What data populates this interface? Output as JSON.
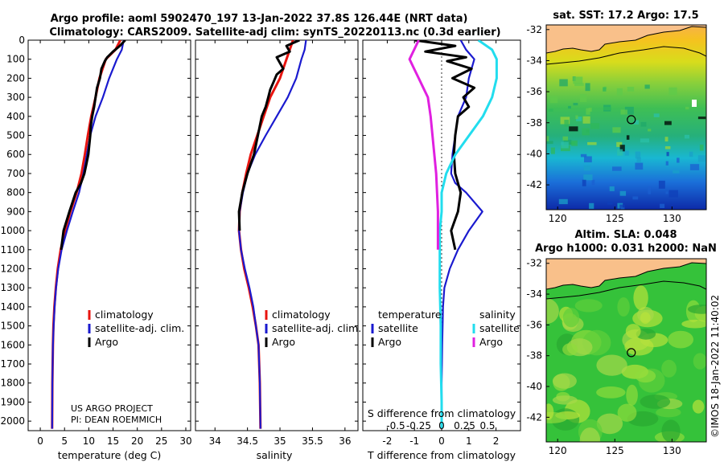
{
  "title_line1": "Argo profile: aoml 5902470_197 13-Jan-2022 37.8S 126.44E (NRT data)",
  "title_line2": "Climatology: CARS2009. Satellite-adj clim: synTS_20220113.nc (0.3d earlier)",
  "credit": [
    "US ARGO PROJECT",
    "PI: DEAN ROEMMICH"
  ],
  "timestamp": "©IMOS 18-Jan-2022 11:40:02",
  "colors": {
    "climatology": "#e8140f",
    "satellite": "#1a1acf",
    "argo": "#000000",
    "sat_salinity": "#22ddee",
    "argo_salinity": "#e020e0"
  },
  "chart_data": [
    {
      "type": "line",
      "title": "",
      "xlabel": "temperature (deg C)",
      "ylabel": "",
      "xlim": [
        -2.5,
        31
      ],
      "ylim": [
        2050,
        0
      ],
      "xticks": [
        0,
        5,
        10,
        15,
        20,
        25,
        30
      ],
      "xtick_labels": [
        "0",
        "5",
        "10",
        "15",
        "20",
        "25",
        "30"
      ],
      "yticks": [
        0,
        100,
        200,
        300,
        400,
        500,
        600,
        700,
        800,
        900,
        1000,
        1100,
        1200,
        1300,
        1400,
        1500,
        1600,
        1700,
        1800,
        1900,
        2000
      ],
      "ytick_labels": [
        "0",
        "100",
        "200",
        "300",
        "400",
        "500",
        "600",
        "700",
        "800",
        "900",
        "1000",
        "1100",
        "1200",
        "1300",
        "1400",
        "1500",
        "1600",
        "1700",
        "1800",
        "1900",
        "2000"
      ],
      "legend": [
        "climatology",
        "satellite-adj. clim.",
        "Argo"
      ],
      "series": [
        {
          "name": "climatology",
          "x": [
            16.5,
            15.5,
            13.5,
            12.2,
            11.4,
            10.5,
            9.8,
            9.2,
            8.5,
            7.5,
            6.2,
            5.1,
            4.2,
            3.6,
            3.2,
            2.9,
            2.7,
            2.6,
            2.5,
            2.45
          ],
          "y": [
            0,
            50,
            100,
            200,
            300,
            400,
            500,
            600,
            700,
            800,
            900,
            1000,
            1100,
            1200,
            1300,
            1400,
            1500,
            1600,
            1800,
            2040
          ]
        },
        {
          "name": "satellite-adj. clim.",
          "x": [
            17.2,
            16.8,
            15.8,
            14.2,
            12.9,
            11.4,
            10.3,
            9.6,
            8.9,
            8.0,
            6.7,
            5.5,
            4.4,
            3.7,
            3.25,
            2.95,
            2.75,
            2.6,
            2.5,
            2.45
          ],
          "y": [
            0,
            50,
            100,
            200,
            300,
            400,
            500,
            600,
            700,
            800,
            900,
            1000,
            1100,
            1200,
            1300,
            1400,
            1500,
            1600,
            1800,
            2040
          ]
        },
        {
          "name": "Argo",
          "x": [
            17.5,
            16.4,
            15.0,
            13.8,
            13.3,
            12.6,
            12.3,
            11.7,
            11.4,
            11.1,
            10.7,
            10.4,
            10.3,
            10.1,
            9.9,
            9.5,
            9.1,
            8.4,
            7.3,
            6.0,
            4.8,
            4.3
          ],
          "y": [
            0,
            30,
            60,
            90,
            110,
            150,
            200,
            250,
            300,
            350,
            400,
            450,
            500,
            550,
            600,
            650,
            700,
            750,
            800,
            900,
            1000,
            1100
          ]
        }
      ]
    },
    {
      "type": "line",
      "title": "",
      "xlabel": "salinity",
      "ylabel": "",
      "xlim": [
        33.7,
        36.2
      ],
      "ylim": [
        2050,
        0
      ],
      "xticks": [
        34,
        34.5,
        35,
        35.5,
        36
      ],
      "xtick_labels": [
        "34",
        "34.5",
        "35",
        "35.5",
        "36"
      ],
      "legend": [
        "climatology",
        "satellite-adj. clim.",
        "Argo"
      ],
      "series": [
        {
          "name": "climatology",
          "x": [
            35.2,
            35.15,
            35.1,
            35.0,
            34.85,
            34.75,
            34.65,
            34.55,
            34.48,
            34.42,
            34.38,
            34.37,
            34.4,
            34.45,
            34.52,
            34.58,
            34.63,
            34.67,
            34.69,
            34.7
          ],
          "y": [
            0,
            50,
            100,
            200,
            300,
            400,
            500,
            600,
            700,
            800,
            900,
            1000,
            1100,
            1200,
            1300,
            1400,
            1500,
            1600,
            1800,
            2040
          ]
        },
        {
          "name": "satellite-adj. clim.",
          "x": [
            35.4,
            35.38,
            35.33,
            35.25,
            35.12,
            34.95,
            34.78,
            34.62,
            34.5,
            34.43,
            34.38,
            34.37,
            34.4,
            34.46,
            34.53,
            34.59,
            34.63,
            34.67,
            34.69,
            34.7
          ],
          "y": [
            0,
            50,
            100,
            200,
            300,
            400,
            500,
            600,
            700,
            800,
            900,
            1000,
            1100,
            1200,
            1300,
            1400,
            1500,
            1600,
            1800,
            2040
          ]
        },
        {
          "name": "Argo",
          "x": [
            35.3,
            35.1,
            35.15,
            34.95,
            35.0,
            35.05,
            34.95,
            34.9,
            34.85,
            34.82,
            34.78,
            34.72,
            34.66,
            34.6,
            34.5,
            34.42,
            34.37,
            34.38
          ],
          "y": [
            0,
            30,
            60,
            90,
            120,
            150,
            180,
            220,
            260,
            300,
            350,
            400,
            500,
            600,
            700,
            800,
            900,
            1000
          ]
        }
      ]
    },
    {
      "type": "line",
      "title": "",
      "xlabel": "T difference from climatology",
      "xlabel_top": "S difference from climatology",
      "xlim": [
        -2.9,
        2.9
      ],
      "ylim": [
        2050,
        0
      ],
      "xticks": [
        -2,
        -1,
        0,
        1,
        2
      ],
      "xtick_labels": [
        "-2",
        "-1",
        "0",
        "1",
        "2"
      ],
      "s_ticks": [
        -0.5,
        -0.25,
        0,
        0.25,
        0.5
      ],
      "s_tick_labels": [
        "-0.5",
        "-0.25",
        "0",
        "0.25",
        "0.5"
      ],
      "legend_headers": [
        "temperature",
        "salinity"
      ],
      "legend_left": [
        "satellite",
        "Argo"
      ],
      "legend_right": [
        "satellite",
        "Argo"
      ],
      "series": [
        {
          "name": "T satellite",
          "x": [
            0.7,
            0.9,
            1.2,
            1.0,
            0.9,
            0.6,
            0.5,
            0.4,
            0.35,
            0.5,
            0.9,
            1.5,
            1.0,
            0.6,
            0.3,
            0.1,
            0.05,
            0.02,
            0,
            0
          ],
          "y": [
            0,
            50,
            100,
            200,
            300,
            400,
            500,
            600,
            700,
            750,
            800,
            900,
            1000,
            1100,
            1200,
            1300,
            1400,
            1600,
            1800,
            2040
          ]
        },
        {
          "name": "T Argo",
          "x": [
            -1.0,
            0.5,
            -0.6,
            0.9,
            0.2,
            1.1,
            0.4,
            1.2,
            0.8,
            1.0,
            0.6,
            0.5,
            0.45,
            0.5,
            0.7,
            0.6,
            0.35,
            0.5
          ],
          "y": [
            0,
            30,
            60,
            90,
            110,
            150,
            200,
            250,
            300,
            350,
            400,
            500,
            600,
            700,
            800,
            900,
            1000,
            1100
          ]
        },
        {
          "name": "S satellite",
          "x": [
            0.4,
            0.55,
            0.6,
            0.6,
            0.55,
            0.45,
            0.3,
            0.15,
            0.05,
            0.0,
            0,
            -0.02,
            -0.02,
            -0.02,
            -0.01,
            -0.01,
            0,
            0
          ],
          "y": [
            0,
            50,
            100,
            200,
            300,
            400,
            500,
            600,
            700,
            800,
            900,
            1000,
            1100,
            1300,
            1500,
            1700,
            1900,
            2040
          ]
        },
        {
          "name": "S Argo",
          "x": [
            -0.25,
            -0.3,
            -0.35,
            -0.3,
            -0.25,
            -0.2,
            -0.15,
            -0.12,
            -0.1,
            -0.08,
            -0.06,
            -0.05,
            -0.04,
            -0.04
          ],
          "y": [
            0,
            50,
            100,
            150,
            200,
            250,
            300,
            400,
            500,
            600,
            700,
            800,
            900,
            1100
          ]
        }
      ]
    },
    {
      "type": "heatmap",
      "title": "sat. SST: 17.2 Argo: 17.5",
      "xlim": [
        119,
        133
      ],
      "ylim": [
        -43.6,
        -31.7
      ],
      "xticks": [
        120,
        125,
        130
      ],
      "xtick_labels": [
        "120",
        "125",
        "130"
      ],
      "yticks": [
        -32,
        -34,
        -36,
        -38,
        -40,
        -42
      ],
      "ytick_labels": [
        "-32",
        "-34",
        "-36",
        "-38",
        "-40",
        "-42"
      ],
      "marker": {
        "lon": 126.44,
        "lat": -37.8
      }
    },
    {
      "type": "heatmap",
      "title_line1": "Altim. SLA: 0.048",
      "title_line2": "Argo h1000: 0.031 h2000: NaN",
      "xlim": [
        119,
        133
      ],
      "ylim": [
        -43.6,
        -31.7
      ],
      "xticks": [
        120,
        125,
        130
      ],
      "xtick_labels": [
        "120",
        "125",
        "130"
      ],
      "yticks": [
        -32,
        -34,
        -36,
        -38,
        -40,
        -42
      ],
      "ytick_labels": [
        "-32",
        "-34",
        "-36",
        "-38",
        "-40",
        "-42"
      ],
      "marker": {
        "lon": 126.44,
        "lat": -37.8
      }
    }
  ]
}
